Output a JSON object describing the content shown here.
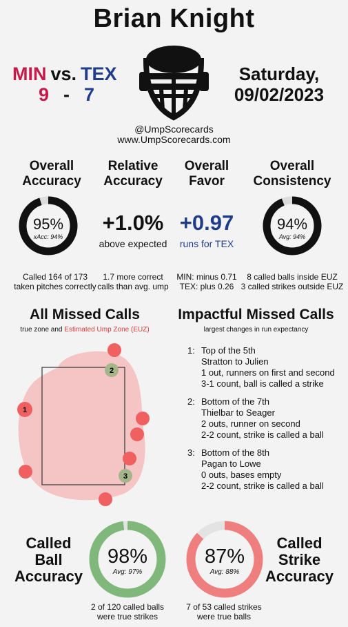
{
  "umpire": "Brian Knight",
  "game": {
    "home_team": "MIN",
    "vs": "vs.",
    "away_team": "TEX",
    "home_score": "9",
    "dash": "-",
    "away_score": "7",
    "date_line1": "Saturday,",
    "date_line2": "09/02/2023"
  },
  "branding": {
    "handle": "@UmpScorecards",
    "site": "www.UmpScorecards.com"
  },
  "colors": {
    "home": "#c8194b",
    "away": "#1f3d8a",
    "favor": "#1f3d8a",
    "ball_green": "#7fb87a",
    "strike_red": "#ef7f7f",
    "euz_red": "#d63a3a"
  },
  "overall_accuracy": {
    "label_1": "Overall",
    "label_2": "Accuracy",
    "value": "95%",
    "percent": 95,
    "sub": "xAcc: 94%",
    "note_1": "Called 164 of 173",
    "note_2": "taken pitches correctly"
  },
  "relative_accuracy": {
    "label_1": "Relative",
    "label_2": "Accuracy",
    "value": "+1.0%",
    "sub": "above expected",
    "note_1": "1.7 more correct",
    "note_2": "calls than avg. ump"
  },
  "overall_favor": {
    "label_1": "Overall",
    "label_2": "Favor",
    "value": "+0.97",
    "sub": "runs for TEX",
    "note_1": "MIN: minus 0.71",
    "note_2": "TEX: plus 0.26"
  },
  "overall_consistency": {
    "label_1": "Overall",
    "label_2": "Consistency",
    "value": "94%",
    "percent": 94,
    "sub": "Avg: 94%",
    "note_1": "8 called balls inside EUZ",
    "note_2": "3 called strikes outside EUZ"
  },
  "missed_calls": {
    "title": "All Missed Calls",
    "legend_a": "true zone and",
    "legend_b": "Estimated Ump Zone (EUZ)",
    "markers": [
      "1",
      "2",
      "3"
    ]
  },
  "impactful": {
    "title": "Impactful Missed Calls",
    "subtitle": "largest changes in run expectancy",
    "items": [
      {
        "num": "1:",
        "l1": "Top of the 5th",
        "l2": "Stratton to Julien",
        "l3": "1 out, runners on first and second",
        "l4": "3-1 count, ball is called a strike"
      },
      {
        "num": "2:",
        "l1": "Bottom of the 7th",
        "l2": "Thielbar to Seager",
        "l3": "2 outs, runner on second",
        "l4": "2-2 count, strike is called a ball"
      },
      {
        "num": "3:",
        "l1": "Bottom of the 8th",
        "l2": "Pagan to Lowe",
        "l3": "0 outs, bases empty",
        "l4": "2-2 count, strike is called a ball"
      }
    ]
  },
  "called_ball": {
    "label_1": "Called",
    "label_2": "Ball",
    "label_3": "Accuracy",
    "value": "98%",
    "percent": 98,
    "sub": "Avg: 97%",
    "note_1": "2 of 120 called balls",
    "note_2": "were true strikes"
  },
  "called_strike": {
    "label_1": "Called",
    "label_2": "Strike",
    "label_3": "Accuracy",
    "value": "87%",
    "percent": 87,
    "sub": "Avg: 88%",
    "note_1": "7 of 53 called strikes",
    "note_2": "were true balls"
  }
}
